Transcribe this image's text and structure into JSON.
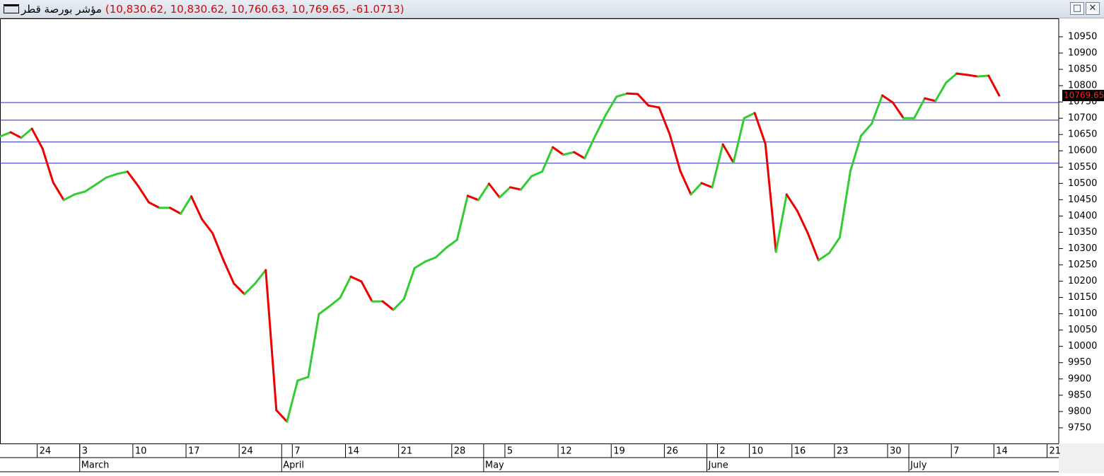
{
  "chart_data": {
    "type": "line",
    "title": "مؤشر بورصة قطر",
    "subtitle": "(10,830.62, 10,830.62, 10,760.63, 10,769.65, -61.0713)",
    "categories": [
      null,
      null,
      null,
      null,
      "24",
      null,
      null,
      null,
      "3",
      null,
      null,
      null,
      null,
      "10",
      null,
      null,
      null,
      null,
      "17",
      null,
      null,
      null,
      null,
      "24",
      null,
      null,
      null,
      null,
      "7",
      null,
      null,
      null,
      null,
      "14",
      null,
      null,
      null,
      null,
      "21",
      null,
      null,
      null,
      null,
      "28",
      null,
      null,
      null,
      null,
      "5",
      null,
      null,
      null,
      null,
      "12",
      null,
      null,
      null,
      null,
      "19",
      null,
      null,
      null,
      null,
      "26",
      null,
      null,
      null,
      null,
      "2",
      null,
      null,
      "10",
      null,
      null,
      null,
      "16",
      null,
      null,
      null,
      "23",
      null,
      null,
      null,
      null,
      "30",
      null,
      null,
      null,
      null,
      null,
      "7",
      null,
      null,
      null,
      "14",
      null,
      null,
      null,
      null,
      "21"
    ],
    "months": [
      null,
      null,
      null,
      null,
      null,
      null,
      null,
      null,
      "March",
      null,
      null,
      null,
      null,
      null,
      null,
      null,
      null,
      null,
      null,
      null,
      null,
      null,
      null,
      null,
      null,
      null,
      null,
      "April",
      null,
      null,
      null,
      null,
      null,
      null,
      null,
      null,
      null,
      null,
      null,
      null,
      null,
      null,
      null,
      null,
      null,
      null,
      "May",
      null,
      null,
      null,
      null,
      null,
      null,
      null,
      null,
      null,
      null,
      null,
      null,
      null,
      null,
      null,
      null,
      null,
      null,
      null,
      null,
      "June",
      null,
      null,
      null,
      null,
      null,
      null,
      null,
      null,
      null,
      null,
      null,
      null,
      null,
      null,
      null,
      null,
      null,
      null,
      "July",
      null,
      null,
      null,
      null,
      null,
      null,
      null,
      null,
      null,
      null,
      null,
      null,
      null,
      null
    ],
    "values": [
      10644,
      10657,
      10640,
      10668,
      10607,
      10503,
      10449,
      10466,
      10475,
      10496,
      10518,
      10529,
      10536,
      10492,
      10442,
      10425,
      10425,
      10407,
      10460,
      10390,
      10347,
      10266,
      10193,
      10160,
      10193,
      10234,
      9804,
      9769,
      9895,
      9906,
      10099,
      10123,
      10149,
      10214,
      10199,
      10138,
      10138,
      10112,
      10145,
      10240,
      10260,
      10273,
      10303,
      10327,
      10462,
      10449,
      10499,
      10457,
      10488,
      10481,
      10522,
      10536,
      10611,
      10588,
      10596,
      10577,
      10646,
      10711,
      10766,
      10776,
      10774,
      10739,
      10733,
      10651,
      10538,
      10466,
      10501,
      10488,
      10620,
      10564,
      10700,
      10716,
      10622,
      10290,
      10466,
      10416,
      10347,
      10264,
      10286,
      10334,
      10538,
      10646,
      10683,
      10770,
      10748,
      10700,
      10700,
      10761,
      10753,
      10809,
      10837,
      10833,
      10828,
      10830.62,
      10769.65,
      null,
      null,
      null,
      null,
      null
    ],
    "up_color": "#33cc33",
    "down_color": "#ee0000",
    "hlines": [
      10748,
      10694,
      10627,
      10562
    ],
    "hline_color": "#2a2ab8",
    "ylim": [
      9702,
      11002
    ],
    "yticks": [
      9750,
      9800,
      9850,
      9900,
      9950,
      10000,
      10050,
      10100,
      10150,
      10200,
      10250,
      10300,
      10350,
      10400,
      10450,
      10500,
      10550,
      10600,
      10650,
      10700,
      10750,
      10800,
      10850,
      10900,
      10950
    ]
  }
}
